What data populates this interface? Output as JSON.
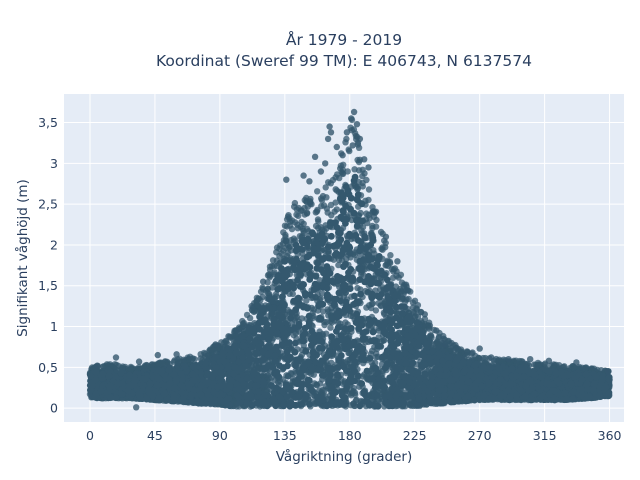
{
  "chart_data": {
    "type": "scatter",
    "title_line1": "År 1979 - 2019",
    "title_line2": "Koordinat (Sweref 99 TM): E 406743, N 6137574",
    "xlabel": "Vågriktning (grader)",
    "ylabel": "Signifikant våghöjd (m)",
    "xlim": [
      -18,
      370
    ],
    "ylim": [
      -0.17,
      3.85
    ],
    "xticks": [
      0,
      45,
      90,
      135,
      180,
      225,
      270,
      315,
      360
    ],
    "xtick_labels": [
      "0",
      "45",
      "90",
      "135",
      "180",
      "225",
      "270",
      "315",
      "360"
    ],
    "yticks": [
      0,
      0.5,
      1,
      1.5,
      2,
      2.5,
      3,
      3.5
    ],
    "ytick_labels": [
      "0",
      "0,5",
      "1",
      "1,5",
      "2",
      "2,5",
      "3",
      "3,5"
    ],
    "grid": true,
    "marker_color": "#34586e",
    "plot_bg": "#e5ecf6",
    "envelope": {
      "x": [
        0,
        15,
        30,
        45,
        60,
        75,
        90,
        100,
        110,
        120,
        130,
        140,
        150,
        160,
        170,
        175,
        180,
        185,
        190,
        195,
        200,
        210,
        220,
        230,
        240,
        255,
        270,
        285,
        300,
        315,
        330,
        345,
        360
      ],
      "y_max": [
        0.5,
        0.55,
        0.5,
        0.55,
        0.6,
        0.65,
        0.8,
        0.95,
        1.2,
        1.5,
        2.0,
        2.5,
        2.6,
        2.7,
        2.85,
        3.3,
        3.6,
        3.4,
        2.9,
        2.6,
        2.3,
        1.8,
        1.5,
        1.2,
        0.95,
        0.75,
        0.62,
        0.6,
        0.58,
        0.55,
        0.52,
        0.5,
        0.45
      ],
      "y_min": [
        0.12,
        0.12,
        0.12,
        0.1,
        0.08,
        0.06,
        0.04,
        0.02,
        0.02,
        0.02,
        0.02,
        0.02,
        0.02,
        0.02,
        0.02,
        0.02,
        0.02,
        0.02,
        0.02,
        0.02,
        0.02,
        0.02,
        0.02,
        0.03,
        0.05,
        0.08,
        0.1,
        0.1,
        0.1,
        0.1,
        0.1,
        0.12,
        0.15
      ]
    },
    "outliers": [
      {
        "x": 183,
        "y": 3.63
      },
      {
        "x": 181,
        "y": 3.55
      },
      {
        "x": 185,
        "y": 3.48
      },
      {
        "x": 178,
        "y": 3.38
      },
      {
        "x": 187,
        "y": 3.3
      },
      {
        "x": 182,
        "y": 3.22
      },
      {
        "x": 166,
        "y": 3.45
      },
      {
        "x": 167,
        "y": 3.38
      },
      {
        "x": 165,
        "y": 3.3
      },
      {
        "x": 171,
        "y": 3.2
      },
      {
        "x": 175,
        "y": 3.1
      },
      {
        "x": 190,
        "y": 3.05
      },
      {
        "x": 193,
        "y": 2.95
      },
      {
        "x": 156,
        "y": 3.08
      },
      {
        "x": 163,
        "y": 3.0
      },
      {
        "x": 148,
        "y": 2.85
      },
      {
        "x": 136,
        "y": 2.8
      },
      {
        "x": 152,
        "y": 2.78
      },
      {
        "x": 160,
        "y": 2.9
      },
      {
        "x": 120,
        "y": 1.55
      },
      {
        "x": 112,
        "y": 1.25
      },
      {
        "x": 103,
        "y": 0.93
      },
      {
        "x": 96,
        "y": 0.88
      },
      {
        "x": 87,
        "y": 0.78
      },
      {
        "x": 60,
        "y": 0.66
      },
      {
        "x": 47,
        "y": 0.65
      },
      {
        "x": 34,
        "y": 0.57
      },
      {
        "x": 18,
        "y": 0.62
      },
      {
        "x": 5,
        "y": 0.52
      },
      {
        "x": 32,
        "y": 0.01
      },
      {
        "x": 270,
        "y": 0.73
      },
      {
        "x": 265,
        "y": 0.68
      },
      {
        "x": 290,
        "y": 0.6
      },
      {
        "x": 305,
        "y": 0.6
      },
      {
        "x": 318,
        "y": 0.58
      },
      {
        "x": 337,
        "y": 0.56
      },
      {
        "x": 359,
        "y": 0.45
      },
      {
        "x": 240,
        "y": 0.95
      },
      {
        "x": 245,
        "y": 0.85
      },
      {
        "x": 232,
        "y": 1.15
      },
      {
        "x": 213,
        "y": 1.8
      },
      {
        "x": 205,
        "y": 2.1
      },
      {
        "x": 246,
        "y": 0.78
      },
      {
        "x": 278,
        "y": 0.62
      }
    ]
  }
}
